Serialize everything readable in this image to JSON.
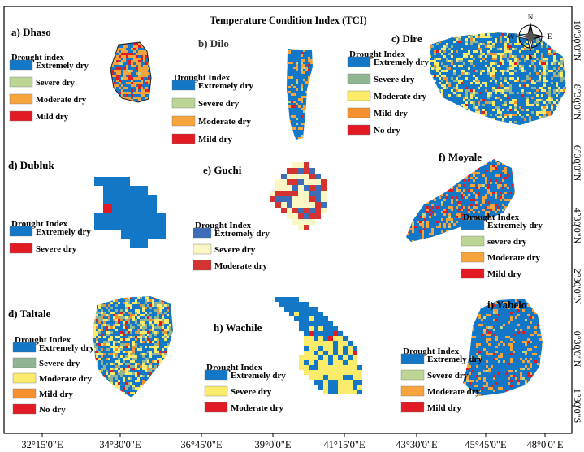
{
  "title": "Temperature Condition Index (TCI)",
  "colors": {
    "extremely_dry": "#1177c6",
    "severe_dry": "#bcd593",
    "moderate_dry": "#fbeb6a",
    "moderate_dry_orange": "#f7a43c",
    "mild_dry": "#e21a23",
    "no_dry": "#e21a23",
    "mild_orange": "#f5902e",
    "sev_green": "#8fb592",
    "guchi_blue": "#3d6db6",
    "guchi_cream": "#fbf7c4",
    "guchi_red": "#d4332f",
    "frame": "#000000"
  },
  "x_ticks": [
    "32°15'0\"E",
    "34°30'0\"E",
    "36°45'0\"E",
    "39°0'0\"E",
    "41°15'0\"E",
    "43°30'0\"E",
    "45°45'0\"E",
    "48°0'0\"E"
  ],
  "y_ticks": [
    "10°30'0\"N",
    "8°30'0\"N",
    "6°30'0\"N",
    "4°30'0\"N",
    "2°30'0\"N",
    "0°30'0\"N",
    "1°30'0\"S"
  ],
  "north_arrow": {
    "n": "N",
    "s": "S",
    "e": "E",
    "w": "W"
  },
  "panels": [
    {
      "id": "a",
      "label": "a) Dhaso",
      "legend_title": "Drought index",
      "items": [
        {
          "label": "Extremely dry",
          "color": "#1177c6"
        },
        {
          "label": "Severe dry",
          "color": "#bcd593"
        },
        {
          "label": "Moderate dry",
          "color": "#f7a43c"
        },
        {
          "label": "Mild dry",
          "color": "#e21a23"
        }
      ]
    },
    {
      "id": "b",
      "label": "b) Dilo",
      "legend_title": "Drought Index",
      "items": [
        {
          "label": "Extremely dry",
          "color": "#1177c6"
        },
        {
          "label": "Severe dry",
          "color": "#bcd593"
        },
        {
          "label": "Moderate dry",
          "color": "#f7a43c"
        },
        {
          "label": "Mild dry",
          "color": "#e21a23"
        }
      ]
    },
    {
      "id": "c",
      "label": "c) Dire",
      "legend_title": "Drought Index",
      "items": [
        {
          "label": "Extremely dry",
          "color": "#1177c6"
        },
        {
          "label": "Severe dry",
          "color": "#8fb592"
        },
        {
          "label": "Moderate dry",
          "color": "#fbeb6a"
        },
        {
          "label": "Mild dry",
          "color": "#f5902e"
        },
        {
          "label": "No dry",
          "color": "#e21a23"
        }
      ]
    },
    {
      "id": "d",
      "label": "d) Dubluk",
      "legend_title": "Drought Index",
      "items": [
        {
          "label": "Extremely dry",
          "color": "#1177c6"
        },
        {
          "label": "Severe dry",
          "color": "#e21a23"
        }
      ]
    },
    {
      "id": "e",
      "label": "e) Guchi",
      "legend_title": "Drought Index",
      "items": [
        {
          "label": "Extremely dry",
          "color": "#3d6db6"
        },
        {
          "label": "Severe dry",
          "color": "#fbf7c4"
        },
        {
          "label": "Moderate dry",
          "color": "#d4332f"
        }
      ]
    },
    {
      "id": "f",
      "label": "f) Moyale",
      "legend_title": "Drought Index",
      "items": [
        {
          "label": "Extremely dry",
          "color": "#1177c6"
        },
        {
          "label": "severe dry",
          "color": "#bcd593"
        },
        {
          "label": "Moderate dry",
          "color": "#f7a43c"
        },
        {
          "label": "Mild dry",
          "color": "#e21a23"
        }
      ]
    },
    {
      "id": "g",
      "label": "d) Taltale",
      "legend_title": "Drought Index",
      "items": [
        {
          "label": "Extremely dry",
          "color": "#1177c6"
        },
        {
          "label": "Severe dry",
          "color": "#8fb592"
        },
        {
          "label": "Moderate dry",
          "color": "#fbeb6a"
        },
        {
          "label": "Mild dry",
          "color": "#f5902e"
        },
        {
          "label": "No dry",
          "color": "#e21a23"
        }
      ]
    },
    {
      "id": "h",
      "label": "h) Wachile",
      "legend_title": "Drought Index",
      "items": [
        {
          "label": "Extremely dry",
          "color": "#1177c6"
        },
        {
          "label": "Severe dry",
          "color": "#fbeb6a"
        },
        {
          "label": "Moderate dry",
          "color": "#e21a23"
        }
      ]
    },
    {
      "id": "i",
      "label": "i) Yabelo",
      "legend_title": "Drought Index",
      "items": [
        {
          "label": "Extremely dry",
          "color": "#1177c6"
        },
        {
          "label": "Severe dry",
          "color": "#bcd593"
        },
        {
          "label": "Moderate dry",
          "color": "#f7a43c"
        },
        {
          "label": "Mild dry",
          "color": "#e21a23"
        }
      ]
    }
  ]
}
